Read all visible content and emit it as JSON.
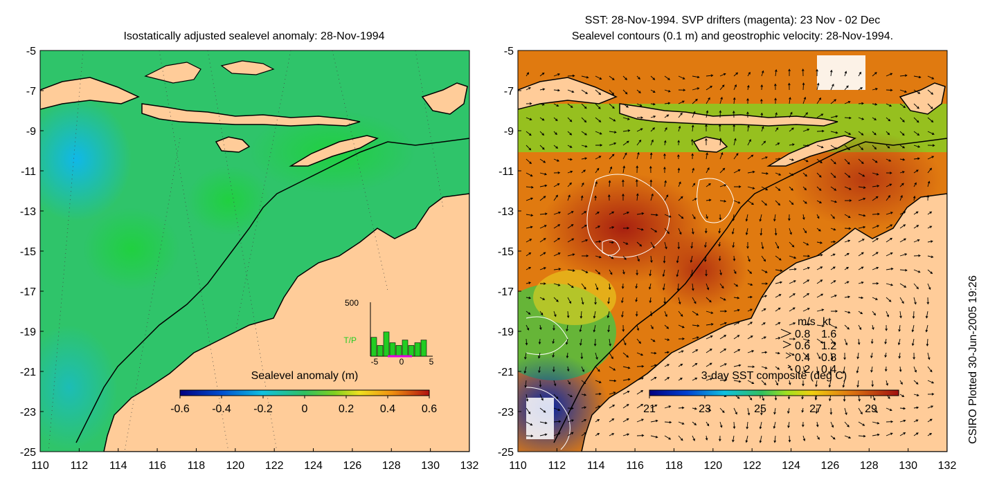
{
  "left_panel": {
    "title": "Isostatically adjusted sealevel anomaly: 28-Nov-1994",
    "colorbar": {
      "label": "Sealevel anomaly (m)",
      "ticks": [
        "-0.6",
        "-0.4",
        "-0.2",
        "0",
        "0.2",
        "0.4",
        "0.6"
      ],
      "range": [
        -0.6,
        0.6
      ]
    },
    "inset": {
      "y_label": "500",
      "series_label": "T/P",
      "x_ticks": [
        "-5",
        "0",
        "5"
      ],
      "bars": [
        0.35,
        0.2,
        0.45,
        0.25,
        0.2,
        0.3,
        0.2,
        0.25,
        0.3
      ]
    }
  },
  "right_panel": {
    "title_line1": "SST: 28-Nov-1994. SVP drifters (magenta): 23 Nov - 02 Dec",
    "title_line2": "Sealevel contours (0.1 m) and geostrophic velocity: 28-Nov-1994.",
    "colorbar": {
      "label": "3-day SST composite (deg C)",
      "ticks": [
        "21",
        "23",
        "25",
        "27",
        "29"
      ],
      "range": [
        21,
        30
      ]
    },
    "velocity_legend": {
      "header_ms": "m/s",
      "header_kt": "kt",
      "rows": [
        {
          "ms": "0.8",
          "kt": "1.6"
        },
        {
          "ms": "0.6",
          "kt": "1.2"
        },
        {
          "ms": "0.4",
          "kt": "0.8"
        },
        {
          "ms": "0.2",
          "kt": "0.4"
        }
      ]
    }
  },
  "axes": {
    "lat_ticks": [
      "-5",
      "-7",
      "-9",
      "-11",
      "-13",
      "-15",
      "-17",
      "-19",
      "-21",
      "-23",
      "-25"
    ],
    "lon_ticks": [
      "110",
      "112",
      "114",
      "116",
      "118",
      "120",
      "122",
      "124",
      "126",
      "128",
      "130",
      "132"
    ],
    "lat_range": [
      -25,
      -5
    ],
    "lon_range": [
      110,
      132
    ]
  },
  "footer": {
    "plotted": "CSIRO Plotted 30-Jun-2005 19:26"
  },
  "colors": {
    "land": "#FFCC99",
    "sea_green": "#33CC55",
    "sea_cyan": "#22BBDD",
    "sst_orange": "#E07A10",
    "sst_red": "#B03010"
  }
}
